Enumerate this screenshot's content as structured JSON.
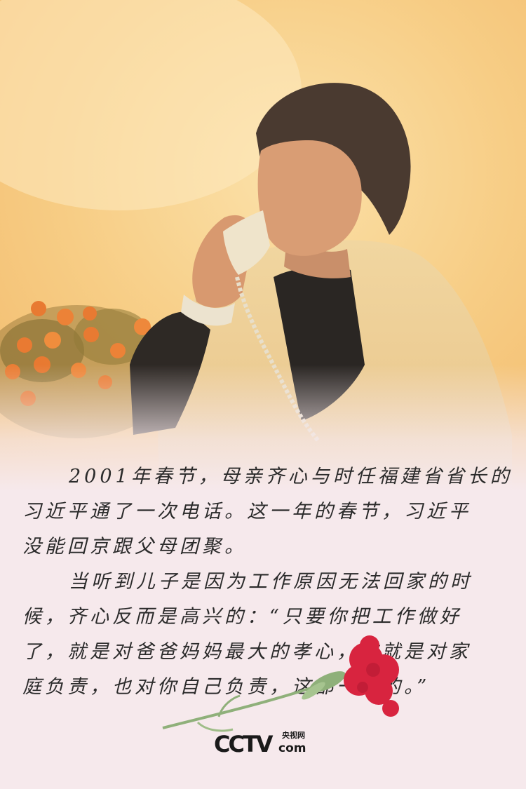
{
  "story": {
    "p1": [
      "2001年春节，母亲齐心与时任福建省省长的",
      "习近平通了一次电话。这一年的春节，习近平",
      "没能回京跟父母团聚。"
    ],
    "p2": [
      "当听到儿子是因为工作原因无法回家的时",
      "候，齐心反而是高兴的：“只要你把工作做好",
      "了，就是对爸爸妈妈最大的孝心，这就是对家",
      "庭负责，也对你自己负责，这都一致的。”"
    ]
  },
  "logo": {
    "main": "CCTV",
    "cn": "央视网",
    "com": "com"
  },
  "colors": {
    "background": "#f6e9ec",
    "photo_warm": "#f6c777",
    "carnation": "#d8243f"
  }
}
